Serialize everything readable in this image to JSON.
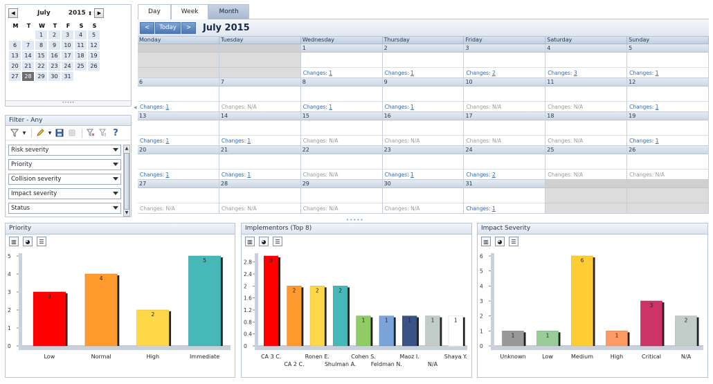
{
  "mini_calendar": {
    "month": "July",
    "year": "2015",
    "prev_icon": "◀",
    "next_icon": "▶",
    "spin_icon": "⬍",
    "weekday_labels": [
      "M",
      "T",
      "W",
      "T",
      "F",
      "S",
      "S"
    ],
    "weeks": [
      [
        "",
        "",
        "1",
        "2",
        "3",
        "4",
        "5"
      ],
      [
        "6",
        "7",
        "8",
        "9",
        "10",
        "11",
        "12"
      ],
      [
        "13",
        "14",
        "15",
        "16",
        "17",
        "18",
        "19"
      ],
      [
        "20",
        "21",
        "22",
        "23",
        "24",
        "25",
        "26"
      ],
      [
        "27",
        "28",
        "29",
        "30",
        "31",
        "",
        ""
      ]
    ],
    "selected_day": "28",
    "grip": "•••••"
  },
  "filter": {
    "title": "Filter - Any",
    "fields": [
      "Risk severity",
      "Priority",
      "Collision severity",
      "Impact severity",
      "Status"
    ]
  },
  "calendar": {
    "tabs": [
      "Day",
      "Week",
      "Month"
    ],
    "active_tab": "Month",
    "prev_label": "<",
    "today_label": "Today",
    "next_label": ">",
    "title": "July 2015",
    "columns": [
      "Monday",
      "Tuesday",
      "Wednesday",
      "Thursday",
      "Friday",
      "Saturday",
      "Sunday"
    ],
    "changes_prefix": "Changes: ",
    "weeks": [
      [
        {
          "day": "",
          "out": true
        },
        {
          "day": "",
          "out": true
        },
        {
          "day": "1",
          "changes": "1"
        },
        {
          "day": "2",
          "changes": "1"
        },
        {
          "day": "3",
          "changes": "2"
        },
        {
          "day": "4",
          "changes": "3"
        },
        {
          "day": "5",
          "changes": "1"
        }
      ],
      [
        {
          "day": "6",
          "changes": "1"
        },
        {
          "day": "7",
          "changes": "N/A"
        },
        {
          "day": "8",
          "changes": "1"
        },
        {
          "day": "9",
          "changes": "1"
        },
        {
          "day": "10",
          "changes": "N/A"
        },
        {
          "day": "11",
          "changes": "N/A"
        },
        {
          "day": "12",
          "changes": "1"
        }
      ],
      [
        {
          "day": "13",
          "changes": "1"
        },
        {
          "day": "14",
          "changes": "1"
        },
        {
          "day": "15",
          "changes": "N/A"
        },
        {
          "day": "16",
          "changes": "N/A"
        },
        {
          "day": "17",
          "changes": "N/A"
        },
        {
          "day": "18",
          "changes": "N/A"
        },
        {
          "day": "19",
          "changes": "1"
        }
      ],
      [
        {
          "day": "20",
          "changes": "1"
        },
        {
          "day": "21",
          "changes": "1"
        },
        {
          "day": "22",
          "changes": "N/A"
        },
        {
          "day": "23",
          "changes": "1"
        },
        {
          "day": "24",
          "changes": "2"
        },
        {
          "day": "25",
          "changes": "N/A"
        },
        {
          "day": "26",
          "changes": "N/A"
        }
      ],
      [
        {
          "day": "27",
          "changes": "N/A"
        },
        {
          "day": "28",
          "changes": "N/A"
        },
        {
          "day": "29",
          "changes": "N/A"
        },
        {
          "day": "30",
          "changes": "N/A"
        },
        {
          "day": "31",
          "changes": "1"
        },
        {
          "day": "",
          "out": true
        },
        {
          "day": "",
          "out": true
        }
      ]
    ]
  },
  "chart_data": [
    {
      "type": "bar",
      "title": "Priority",
      "categories": [
        "Low",
        "Normal",
        "High",
        "Immediate"
      ],
      "values": [
        3,
        4,
        2,
        5
      ],
      "colors": [
        "#ff0000",
        "#ff9a2e",
        "#ffd84a",
        "#46b8b8"
      ],
      "ylim": [
        0,
        5
      ],
      "yticks": [
        "0",
        "1",
        "2",
        "3",
        "4",
        "5"
      ],
      "label_rows": 1
    },
    {
      "type": "bar",
      "title": "Implementors (Top 8)",
      "categories": [
        "CA 3 C.",
        "CA 2 C.",
        "Ronen E.",
        "Shulman A.",
        "Cohen S.",
        "Feldman N.",
        "Maoz I.",
        "N/A",
        "Shaya Y."
      ],
      "values": [
        3,
        2,
        2,
        2,
        1,
        1,
        1,
        1,
        1
      ],
      "colors": [
        "#ff0000",
        "#ff9a2e",
        "#ffd84a",
        "#46b8b8",
        "#90cc66",
        "#7aa4da",
        "#3b5287",
        "#c2ccc8",
        "#ffffff"
      ],
      "ylim": [
        0,
        3
      ],
      "yticks": [
        "0",
        "0.4",
        "0.8",
        "1.2",
        "1.6",
        "2",
        "2.4",
        "2.8"
      ],
      "label_rows": 2
    },
    {
      "type": "bar",
      "title": "Impact Severity",
      "categories": [
        "Unknown",
        "Low",
        "Medium",
        "High",
        "Critical",
        "N/A"
      ],
      "values": [
        1,
        1,
        6,
        1,
        3,
        2
      ],
      "colors": [
        "#999999",
        "#9acc99",
        "#ffcc33",
        "#ff9966",
        "#cc3366",
        "#c2ccc8"
      ],
      "ylim": [
        0,
        6
      ],
      "yticks": [
        "0",
        "1",
        "2",
        "3",
        "4",
        "5",
        "6"
      ],
      "label_rows": 1
    }
  ]
}
